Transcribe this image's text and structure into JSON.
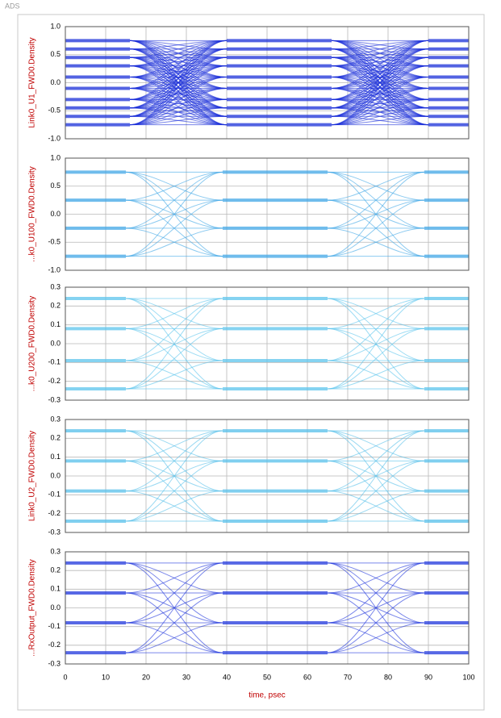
{
  "app_label": "ADS",
  "chart_data": [
    {
      "type": "eye",
      "ylabel": "Link0_U1_FWD0.Density",
      "color": "#1a2fd8",
      "xlim": [
        0,
        100
      ],
      "ylim": [
        -1.0,
        1.0
      ],
      "yticks": [
        {
          "value": 1.0,
          "label": "1.0"
        },
        0.5,
        {
          "value": 0.0,
          "label": "0.0"
        },
        -0.5,
        {
          "value": -1.0,
          "label": "-1.0"
        }
      ],
      "levels": [
        0.75,
        0.6,
        0.45,
        0.3,
        0.1,
        -0.1,
        -0.3,
        -0.45,
        -0.6,
        -0.75
      ],
      "crossings": [
        28,
        78
      ]
    },
    {
      "type": "eye",
      "ylabel": "...k0_U100_FWD0.Density",
      "color": "#3fa6e6",
      "xlim": [
        0,
        100
      ],
      "ylim": [
        -1.0,
        1.0
      ],
      "yticks": [
        {
          "value": 1.0,
          "label": "1.0"
        },
        0.5,
        {
          "value": 0.0,
          "label": "0.0"
        },
        -0.5,
        {
          "value": -1.0,
          "label": "-1.0"
        }
      ],
      "levels": [
        0.75,
        0.25,
        -0.25,
        -0.75
      ],
      "crossings": [
        27,
        77
      ]
    },
    {
      "type": "eye",
      "ylabel": "...k0_U200_FWD0.Density",
      "color": "#5cc4ec",
      "xlim": [
        0,
        100
      ],
      "ylim": [
        -0.3,
        0.3
      ],
      "yticks": [
        0.3,
        0.2,
        0.1,
        {
          "value": 0.0,
          "label": "0.0"
        },
        -0.1,
        -0.2,
        -0.3
      ],
      "levels": [
        0.24,
        0.08,
        -0.09,
        -0.24
      ],
      "crossings": [
        27,
        77
      ]
    },
    {
      "type": "eye",
      "ylabel": "Link0_U2_FWD0.Density",
      "color": "#56bfea",
      "xlim": [
        0,
        100
      ],
      "ylim": [
        -0.3,
        0.3
      ],
      "yticks": [
        0.3,
        0.2,
        0.1,
        {
          "value": 0.0,
          "label": "0.0"
        },
        -0.1,
        -0.2,
        -0.3
      ],
      "levels": [
        0.24,
        0.08,
        -0.08,
        -0.24
      ],
      "crossings": [
        27,
        77
      ]
    },
    {
      "type": "eye",
      "ylabel": "...RxOutput_FWD0.Density",
      "color": "#1f35dc",
      "xlim": [
        0,
        100
      ],
      "ylim": [
        -0.3,
        0.3
      ],
      "yticks": [
        0.3,
        0.2,
        0.1,
        {
          "value": 0.0,
          "label": "0.0"
        },
        -0.1,
        -0.2,
        -0.3
      ],
      "levels": [
        0.24,
        0.08,
        -0.08,
        -0.24
      ],
      "crossings": [
        27,
        77
      ],
      "xlabel": "time, psec",
      "xticks": [
        0,
        10,
        20,
        30,
        40,
        50,
        60,
        70,
        80,
        90,
        100
      ]
    }
  ]
}
